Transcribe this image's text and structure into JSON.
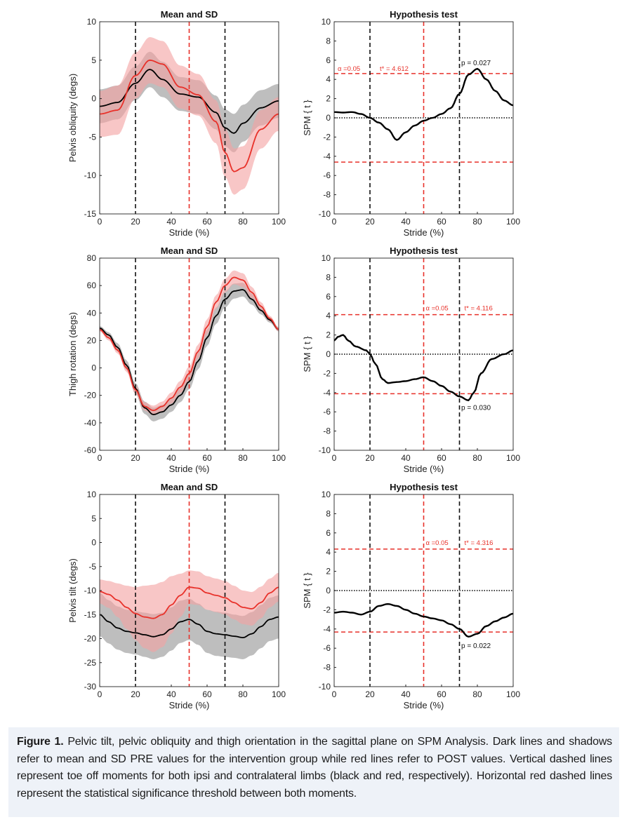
{
  "caption": {
    "label": "Figure 1.",
    "text": " Pelvic tilt, pelvic obliquity and thigh orientation in the sagittal plane on SPM Analysis. Dark lines and shadows refer to mean and SD PRE values for the intervention group while red lines refer to POST values. Vertical dashed lines represent toe off moments for both ipsi and contralateral limbs (black and red, respectively). Horizontal red dashed lines represent the statistical significance threshold between both moments."
  },
  "colors": {
    "pre": "#000000",
    "post": "#e8312a",
    "pre_band": "#a8a8a8",
    "post_band": "#f4a3a3",
    "threshold": "#e8312a"
  },
  "chart_data": [
    {
      "type": "line",
      "panel": "mean-sd-pelvis-obliquity",
      "title": "Mean and SD",
      "xlabel": "Stride (%)",
      "ylabel": "Pelvis obliquity (degs)",
      "xlim": [
        0,
        100
      ],
      "ylim": [
        -15,
        10
      ],
      "xticks": [
        0,
        20,
        40,
        60,
        80,
        100
      ],
      "yticks": [
        -15,
        -10,
        -5,
        0,
        5,
        10
      ],
      "x": [
        0,
        10,
        20,
        28,
        35,
        45,
        55,
        65,
        70,
        75,
        80,
        90,
        100
      ],
      "series": [
        {
          "role": "pre",
          "mean": [
            -1,
            -0.5,
            2,
            3.8,
            2.5,
            0.6,
            0.2,
            -1.8,
            -3.8,
            -4.5,
            -3.2,
            -1.2,
            -0.3
          ],
          "sd": [
            2.2,
            2.2,
            2.2,
            2.3,
            2.3,
            2.2,
            2.2,
            2.2,
            2.4,
            2.5,
            2.4,
            2.3,
            2.2
          ]
        },
        {
          "role": "post",
          "mean": [
            -2,
            -1.5,
            3,
            5,
            4.5,
            1.5,
            0.5,
            -3,
            -7,
            -9.5,
            -9,
            -4,
            -2
          ],
          "sd": [
            3,
            3.2,
            3,
            3,
            3,
            2.8,
            2.7,
            2.8,
            3.2,
            3,
            2.8,
            2.5,
            2.2
          ]
        }
      ],
      "vlines": [
        {
          "x": 20,
          "color": "black"
        },
        {
          "x": 50,
          "color": "red"
        },
        {
          "x": 70,
          "color": "black"
        }
      ]
    },
    {
      "type": "line",
      "panel": "hypothesis-test-pelvis-obliquity",
      "title": "Hypothesis test",
      "xlabel": "Stride (%)",
      "ylabel": "SPM { t }",
      "xlim": [
        0,
        100
      ],
      "ylim": [
        -10,
        10
      ],
      "xticks": [
        0,
        20,
        40,
        60,
        80,
        100
      ],
      "yticks": [
        -10,
        -8,
        -6,
        -4,
        -2,
        0,
        2,
        4,
        6,
        8,
        10
      ],
      "x": [
        0,
        5,
        10,
        15,
        20,
        25,
        30,
        35,
        40,
        45,
        50,
        55,
        60,
        65,
        70,
        75,
        80,
        85,
        90,
        95,
        100
      ],
      "values": [
        0.6,
        0.55,
        0.6,
        0.4,
        0.0,
        -0.5,
        -1.2,
        -2.3,
        -1.5,
        -0.8,
        -0.3,
        0.0,
        0.4,
        1.0,
        2.5,
        4.5,
        5.1,
        4.0,
        2.8,
        1.8,
        1.3
      ],
      "threshold": 4.612,
      "annotations": {
        "alpha": "α =0.05",
        "tstar": "t* = 4.612",
        "p": "p = 0.027"
      },
      "vlines": [
        {
          "x": 20,
          "color": "black"
        },
        {
          "x": 50,
          "color": "red"
        },
        {
          "x": 70,
          "color": "black"
        }
      ]
    },
    {
      "type": "line",
      "panel": "mean-sd-thigh-rotation",
      "title": "Mean and SD",
      "xlabel": "Stride (%)",
      "ylabel": "Thigh rotation (degs)",
      "xlim": [
        0,
        100
      ],
      "ylim": [
        -60,
        80
      ],
      "xticks": [
        0,
        20,
        40,
        60,
        80,
        100
      ],
      "yticks": [
        -60,
        -40,
        -20,
        0,
        20,
        40,
        60,
        80
      ],
      "x": [
        0,
        5,
        10,
        15,
        20,
        25,
        30,
        35,
        40,
        45,
        50,
        55,
        60,
        65,
        70,
        75,
        80,
        85,
        90,
        95,
        100
      ],
      "series": [
        {
          "role": "pre",
          "mean": [
            29,
            24,
            15,
            2,
            -15,
            -29,
            -34,
            -32,
            -27,
            -20,
            -10,
            5,
            22,
            38,
            50,
            56,
            57,
            50,
            42,
            35,
            28
          ],
          "sd": [
            1.5,
            2,
            3,
            3.5,
            4,
            4.5,
            5,
            5,
            5,
            5,
            5.5,
            6,
            6,
            6,
            6,
            5.5,
            5,
            4,
            3,
            2,
            1.5
          ]
        },
        {
          "role": "post",
          "mean": [
            28,
            22,
            13,
            0,
            -16,
            -28,
            -31,
            -28,
            -22,
            -14,
            -4,
            12,
            30,
            48,
            60,
            66,
            64,
            55,
            45,
            36,
            28
          ],
          "sd": [
            1.5,
            2,
            2.5,
            3,
            3,
            3,
            3.5,
            3.5,
            4,
            4.5,
            5,
            5,
            5.5,
            5,
            5,
            5,
            5,
            4,
            3,
            2,
            1.5
          ]
        }
      ],
      "vlines": [
        {
          "x": 20,
          "color": "black"
        },
        {
          "x": 50,
          "color": "red"
        },
        {
          "x": 70,
          "color": "black"
        }
      ]
    },
    {
      "type": "line",
      "panel": "hypothesis-test-thigh-rotation",
      "title": "Hypothesis test",
      "xlabel": "Stride (%)",
      "ylabel": "SPM { t }",
      "xlim": [
        0,
        100
      ],
      "ylim": [
        -10,
        10
      ],
      "xticks": [
        0,
        20,
        40,
        60,
        80,
        100
      ],
      "yticks": [
        -10,
        -8,
        -6,
        -4,
        -2,
        0,
        2,
        4,
        6,
        8,
        10
      ],
      "x": [
        0,
        2,
        5,
        8,
        12,
        18,
        20,
        23,
        27,
        30,
        35,
        40,
        45,
        50,
        55,
        60,
        65,
        70,
        75,
        78,
        82,
        88,
        95,
        100
      ],
      "values": [
        1.4,
        1.8,
        2.0,
        1.4,
        0.8,
        0.4,
        0.0,
        -1.0,
        -2.6,
        -3.0,
        -2.9,
        -2.8,
        -2.6,
        -2.4,
        -2.8,
        -3.3,
        -3.9,
        -4.4,
        -4.8,
        -4.0,
        -2.0,
        -0.5,
        0.0,
        0.4
      ],
      "threshold": 4.116,
      "annotations": {
        "alpha": "α =0.05",
        "tstar": "t* = 4.116",
        "p": "p = 0.030"
      },
      "vlines": [
        {
          "x": 20,
          "color": "black"
        },
        {
          "x": 50,
          "color": "red"
        },
        {
          "x": 70,
          "color": "black"
        }
      ]
    },
    {
      "type": "line",
      "panel": "mean-sd-pelvis-tilt",
      "title": "Mean and SD",
      "xlabel": "Stride (%)",
      "ylabel": "Pelvis tilt (degs)",
      "xlim": [
        0,
        100
      ],
      "ylim": [
        -30,
        10
      ],
      "xticks": [
        0,
        20,
        40,
        60,
        80,
        100
      ],
      "yticks": [
        -30,
        -25,
        -20,
        -15,
        -10,
        -5,
        0,
        5,
        10
      ],
      "x": [
        0,
        5,
        10,
        15,
        20,
        25,
        30,
        35,
        40,
        45,
        50,
        55,
        60,
        65,
        70,
        75,
        80,
        85,
        90,
        95,
        100
      ],
      "series": [
        {
          "role": "pre",
          "mean": [
            -15,
            -16.5,
            -17.8,
            -18.5,
            -18.8,
            -19.2,
            -19.6,
            -19.2,
            -18,
            -16.5,
            -16,
            -17,
            -18.5,
            -19,
            -19.2,
            -19.5,
            -19.8,
            -19,
            -17.5,
            -16,
            -15.5
          ],
          "sd": [
            4.5,
            4.5,
            4.5,
            4.5,
            4.5,
            4.6,
            4.7,
            4.6,
            4.5,
            4.4,
            4.3,
            4.3,
            4.5,
            4.6,
            4.6,
            4.5,
            4.5,
            4.5,
            4.5,
            4.5,
            4.5
          ]
        },
        {
          "role": "post",
          "mean": [
            -10.2,
            -10.8,
            -12,
            -13.5,
            -14.8,
            -15.5,
            -15.8,
            -15,
            -13,
            -11,
            -9.3,
            -9.5,
            -10.5,
            -11,
            -11.5,
            -12.5,
            -13.5,
            -13.8,
            -12.5,
            -10.5,
            -9.3
          ],
          "sd": [
            2.5,
            2.8,
            3.5,
            4.5,
            5.5,
            6.5,
            7,
            6.8,
            6,
            4.5,
            3.5,
            3.5,
            3.5,
            3.5,
            3.5,
            3.5,
            3.5,
            3.5,
            3.3,
            3,
            3
          ]
        }
      ],
      "vlines": [
        {
          "x": 20,
          "color": "black"
        },
        {
          "x": 50,
          "color": "red"
        },
        {
          "x": 70,
          "color": "black"
        }
      ]
    },
    {
      "type": "line",
      "panel": "hypothesis-test-pelvis-tilt",
      "title": "Hypothesis test",
      "xlabel": "Stride (%)",
      "ylabel": "SPM { t }",
      "xlim": [
        0,
        100
      ],
      "ylim": [
        -10,
        10
      ],
      "xticks": [
        0,
        20,
        40,
        60,
        80,
        100
      ],
      "yticks": [
        -10,
        -8,
        -6,
        -4,
        -2,
        0,
        2,
        4,
        6,
        8,
        10
      ],
      "x": [
        0,
        5,
        10,
        15,
        20,
        25,
        30,
        35,
        40,
        45,
        50,
        55,
        60,
        65,
        70,
        75,
        80,
        85,
        90,
        95,
        100
      ],
      "values": [
        -2.3,
        -2.2,
        -2.3,
        -2.5,
        -2.2,
        -1.6,
        -1.4,
        -1.6,
        -2.0,
        -2.4,
        -2.7,
        -2.9,
        -3.1,
        -3.5,
        -4.0,
        -4.8,
        -4.5,
        -3.7,
        -3.2,
        -2.8,
        -2.4
      ],
      "threshold": 4.316,
      "annotations": {
        "alpha": "α =0.05",
        "tstar": "t* = 4.316",
        "p": "p = 0.022"
      },
      "vlines": [
        {
          "x": 20,
          "color": "black"
        },
        {
          "x": 50,
          "color": "red"
        },
        {
          "x": 70,
          "color": "black"
        }
      ]
    }
  ]
}
